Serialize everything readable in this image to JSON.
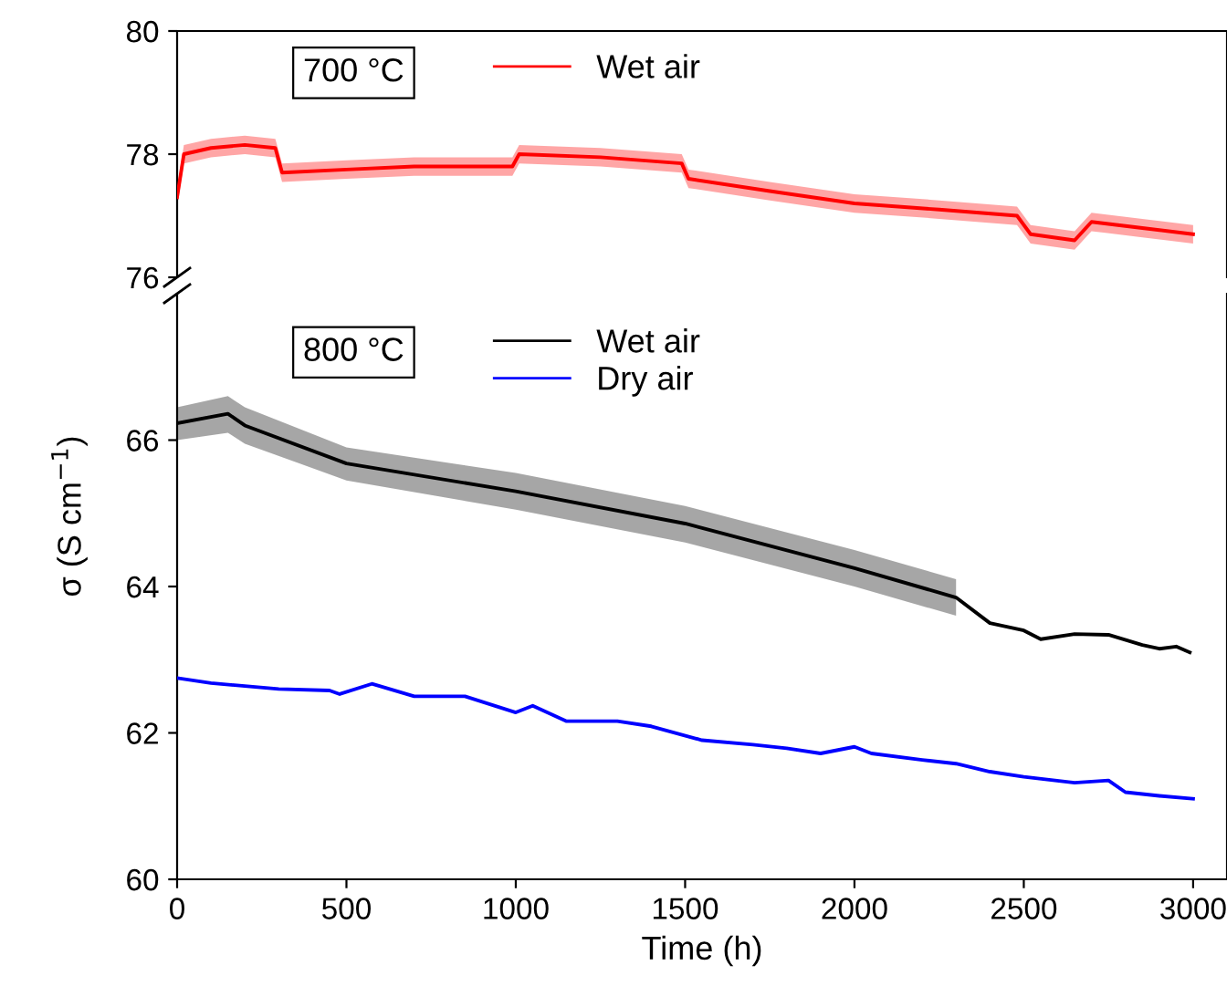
{
  "chart_data": [
    {
      "type": "line",
      "xlim": [
        0,
        3100
      ],
      "ylim": [
        76,
        80
      ],
      "yticks": [
        76,
        78,
        80
      ],
      "tick_labels": "y",
      "legend": "top left",
      "grid": false,
      "annotations": [
        "700 °C"
      ],
      "series": [
        {
          "name": "Wet air",
          "color": "#ff0000",
          "x": [
            0,
            20,
            100,
            200,
            290,
            310,
            500,
            700,
            990,
            1010,
            1250,
            1490,
            1510,
            1750,
            2000,
            2250,
            2480,
            2520,
            2650,
            2700,
            2850,
            3000
          ],
          "values": [
            77.3,
            78.0,
            78.1,
            78.15,
            78.1,
            77.7,
            77.75,
            77.8,
            77.8,
            78.0,
            77.95,
            77.85,
            77.6,
            77.4,
            77.2,
            77.1,
            77.0,
            76.7,
            76.6,
            76.9,
            76.8,
            76.7
          ],
          "lower": [
            77.15,
            77.85,
            77.95,
            78.0,
            77.95,
            77.55,
            77.6,
            77.65,
            77.65,
            77.85,
            77.8,
            77.7,
            77.45,
            77.25,
            77.05,
            76.95,
            76.85,
            76.55,
            76.45,
            76.75,
            76.65,
            76.55
          ],
          "upper": [
            77.45,
            78.15,
            78.25,
            78.3,
            78.25,
            77.85,
            77.9,
            77.95,
            77.95,
            78.15,
            78.1,
            78.0,
            77.75,
            77.55,
            77.35,
            77.25,
            77.15,
            76.85,
            76.75,
            77.05,
            76.95,
            76.85
          ]
        }
      ]
    },
    {
      "type": "line",
      "xlim": [
        0,
        3100
      ],
      "ylim": [
        60,
        68
      ],
      "yticks": [
        60,
        62,
        64,
        66
      ],
      "xticks": [
        0,
        500,
        1000,
        1500,
        2000,
        2500,
        3000
      ],
      "xlabel": "Time (h)",
      "ylabel": "σ (S cm$^{−1}$)",
      "legend": "top left",
      "grid": false,
      "annotations": [
        "800 °C"
      ],
      "series": [
        {
          "name": "Wet air",
          "color": "#000000",
          "x": [
            0,
            150,
            200,
            500,
            1000,
            1500,
            2000,
            2300,
            2400,
            2500,
            2550,
            2650,
            2750,
            2850,
            2900,
            2950,
            2990
          ],
          "values": [
            66.23,
            66.36,
            66.2,
            65.68,
            65.3,
            64.86,
            64.25,
            63.85,
            63.5,
            63.4,
            63.28,
            63.35,
            63.34,
            63.2,
            63.15,
            63.18,
            63.1
          ],
          "lower": [
            66.0,
            66.1,
            65.95,
            65.45,
            65.05,
            64.6,
            64.0,
            63.6,
            null,
            null,
            null,
            null,
            null,
            null,
            null,
            null,
            null
          ],
          "upper": [
            66.45,
            66.6,
            66.45,
            65.9,
            65.55,
            65.1,
            64.5,
            64.1,
            null,
            null,
            null,
            null,
            null,
            null,
            null,
            null,
            null
          ]
        },
        {
          "name": "Dry air",
          "color": "#0000ff",
          "x": [
            0,
            100,
            200,
            300,
            450,
            480,
            575,
            700,
            850,
            1000,
            1050,
            1150,
            1300,
            1400,
            1550,
            1700,
            1800,
            1900,
            2000,
            2050,
            2200,
            2300,
            2400,
            2500,
            2650,
            2750,
            2800,
            2900,
            3000
          ],
          "values": [
            62.75,
            62.68,
            62.64,
            62.6,
            62.58,
            62.53,
            62.67,
            62.5,
            62.5,
            62.28,
            62.37,
            62.16,
            62.16,
            62.09,
            61.9,
            61.84,
            61.79,
            61.72,
            61.81,
            61.72,
            61.63,
            61.58,
            61.47,
            61.4,
            61.32,
            61.35,
            61.19,
            61.14,
            61.1
          ]
        }
      ]
    }
  ]
}
